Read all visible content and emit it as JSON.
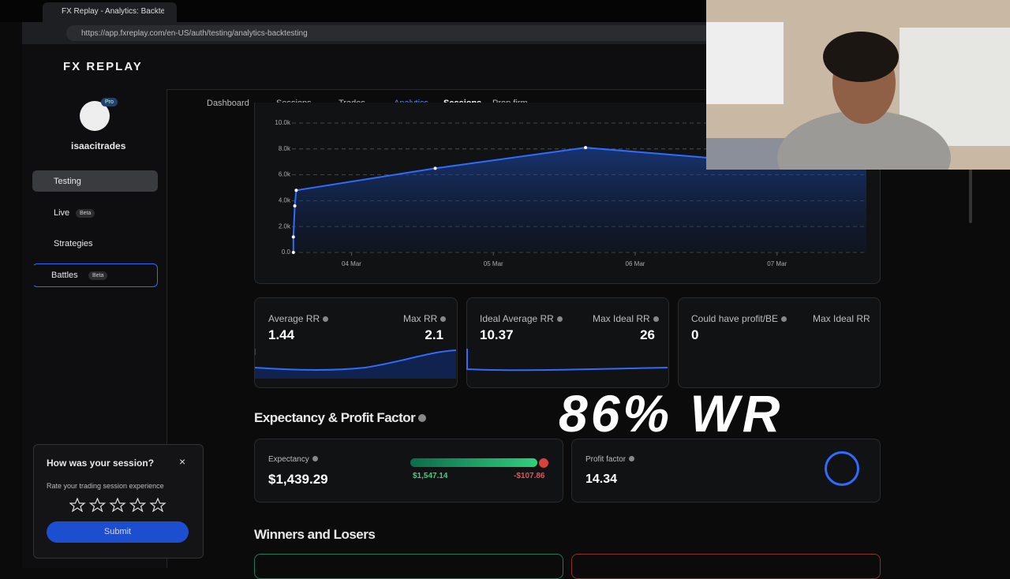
{
  "browser": {
    "tab_title": "FX Replay - Analytics: Backtesting",
    "url": "https://app.fxreplay.com/en-US/auth/testing/analytics-backtesting"
  },
  "app": {
    "logo": "FX REPLAY",
    "user": {
      "name": "isaacitrades",
      "badge": "Pro"
    },
    "sidebar": [
      {
        "label": "Testing"
      },
      {
        "label": "Live",
        "badge": "Beta"
      },
      {
        "label": "Strategies"
      },
      {
        "label": "Battles",
        "badge": "Beta"
      }
    ],
    "tabs": [
      "Dashboard",
      "Sessions",
      "Trades",
      "Analytics",
      "Sessions",
      "Prop firm"
    ]
  },
  "chart_data": {
    "type": "line",
    "color": "#2f6bff",
    "x": [
      3.59,
      3.59,
      3.6,
      3.61,
      4.59,
      5.65,
      6.53,
      7.63
    ],
    "values": [
      0,
      1200,
      3600,
      4800,
      6500,
      8100,
      7300,
      7200
    ],
    "xlim": [
      3.58,
      7.63
    ],
    "xticks": [
      {
        "value": 4,
        "label": "04 Mar"
      },
      {
        "value": 5,
        "label": "05 Mar"
      },
      {
        "value": 6,
        "label": "06 Mar"
      },
      {
        "value": 7,
        "label": "07 Mar"
      }
    ],
    "ylim": [
      0,
      10000
    ],
    "yticks": [
      {
        "value": 0,
        "label": "0.0"
      },
      {
        "value": 2000,
        "label": "2.0k"
      },
      {
        "value": 4000,
        "label": "4.0k"
      },
      {
        "value": 6000,
        "label": "6.0k"
      },
      {
        "value": 8000,
        "label": "8.0k"
      },
      {
        "value": 10000,
        "label": "10.0k"
      }
    ],
    "grid": true
  },
  "stat_cards": [
    {
      "left_label": "Average RR",
      "left_value": 1.44,
      "right_label": "Max RR",
      "right_value": 2.1
    },
    {
      "left_label": "Ideal Average RR",
      "left_value": 10.37,
      "right_label": "Max Ideal RR",
      "right_value": 26
    },
    {
      "left_label": "Could have profit/BE",
      "left_value": 0,
      "right_label": "Max Ideal RR"
    }
  ],
  "overlay_caption": "86% WR",
  "expectancy": {
    "title": "Expectancy & Profit Factor",
    "expectancy_label": "Expectancy",
    "expectancy_value": "$1,439.29",
    "win_total": "$1,547.14",
    "loss_total": "-$107.86",
    "profit_factor_label": "Profit factor",
    "profit_factor_value": 14.34
  },
  "winners_title": "Winners and Losers",
  "feedback": {
    "title": "How was your session?",
    "subtitle": "Rate your trading session experience",
    "button": "Submit"
  }
}
